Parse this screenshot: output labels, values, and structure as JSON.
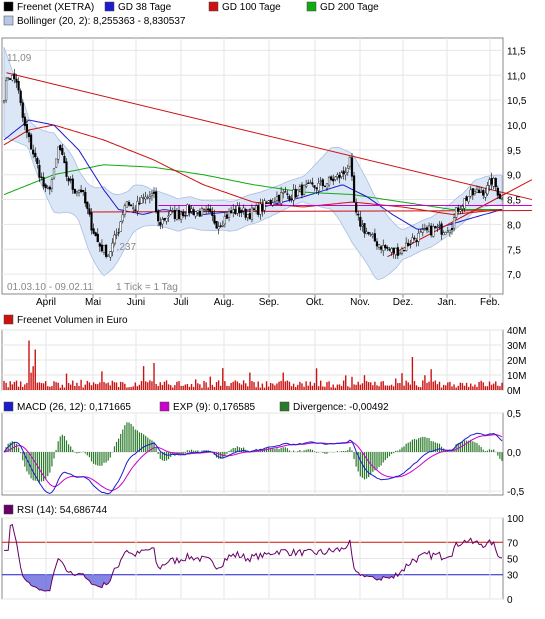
{
  "chart_data": [
    {
      "type": "candlestick",
      "legend": [
        {
          "label": "Freenet (XETRA)",
          "color": "#000000"
        },
        {
          "label": "GD 38 Tage",
          "color": "#1c1ccc"
        },
        {
          "label": "GD 100 Tage",
          "color": "#cc1111"
        },
        {
          "label": "GD 200 Tage",
          "color": "#11aa11"
        },
        {
          "label": "Bollinger (20, 2): 8,255363 - 8,830537",
          "color": "#b8c8e8"
        }
      ],
      "months": [
        "April",
        "Mai",
        "Juni",
        "Juli",
        "Aug.",
        "Sep.",
        "Okt.",
        "Nov.",
        "Dez.",
        "Jan.",
        "Feb."
      ],
      "y_ticks": [
        "11,5",
        "11,0",
        "10,5",
        "10,0",
        "9,5",
        "9,0",
        "8,5",
        "8,0",
        "7,5",
        "7,0"
      ],
      "ylim": [
        6.6,
        11.75
      ],
      "high_label": "11,09",
      "low_label": "7,237",
      "date_range": "01.03.10 - 09.02.11",
      "tick_note": "1 Tick = 1 Tag",
      "close_anchors": [
        {
          "m": 0.0,
          "v": 10.6
        },
        {
          "m": 0.08,
          "v": 11.0
        },
        {
          "m": 0.25,
          "v": 10.9
        },
        {
          "m": 0.4,
          "v": 10.0
        },
        {
          "m": 0.6,
          "v": 9.4
        },
        {
          "m": 0.85,
          "v": 8.6
        },
        {
          "m": 1.0,
          "v": 9.0
        },
        {
          "m": 1.1,
          "v": 9.6
        },
        {
          "m": 1.25,
          "v": 9.0
        },
        {
          "m": 1.4,
          "v": 8.7
        },
        {
          "m": 1.55,
          "v": 8.7
        },
        {
          "m": 1.75,
          "v": 8.0
        },
        {
          "m": 1.9,
          "v": 7.6
        },
        {
          "m": 2.1,
          "v": 7.4
        },
        {
          "m": 2.3,
          "v": 7.9
        },
        {
          "m": 2.45,
          "v": 8.5
        },
        {
          "m": 2.6,
          "v": 8.3
        },
        {
          "m": 2.8,
          "v": 8.5
        },
        {
          "m": 3.0,
          "v": 8.6
        },
        {
          "m": 3.1,
          "v": 8.0
        },
        {
          "m": 3.3,
          "v": 8.2
        },
        {
          "m": 3.5,
          "v": 8.2
        },
        {
          "m": 3.7,
          "v": 8.3
        },
        {
          "m": 3.9,
          "v": 8.25
        },
        {
          "m": 4.1,
          "v": 8.2
        },
        {
          "m": 4.3,
          "v": 8.0
        },
        {
          "m": 4.5,
          "v": 8.2
        },
        {
          "m": 4.7,
          "v": 8.3
        },
        {
          "m": 4.9,
          "v": 8.2
        },
        {
          "m": 5.0,
          "v": 8.25
        },
        {
          "m": 5.2,
          "v": 8.35
        },
        {
          "m": 5.4,
          "v": 8.5
        },
        {
          "m": 5.6,
          "v": 8.6
        },
        {
          "m": 5.8,
          "v": 8.6
        },
        {
          "m": 6.0,
          "v": 8.7
        },
        {
          "m": 6.2,
          "v": 8.75
        },
        {
          "m": 6.4,
          "v": 8.8
        },
        {
          "m": 6.6,
          "v": 8.9
        },
        {
          "m": 6.8,
          "v": 9.0
        },
        {
          "m": 6.95,
          "v": 9.25
        },
        {
          "m": 7.05,
          "v": 8.2
        },
        {
          "m": 7.2,
          "v": 7.95
        },
        {
          "m": 7.4,
          "v": 7.7
        },
        {
          "m": 7.6,
          "v": 7.55
        },
        {
          "m": 7.8,
          "v": 7.45
        },
        {
          "m": 8.0,
          "v": 7.5
        },
        {
          "m": 8.2,
          "v": 7.7
        },
        {
          "m": 8.4,
          "v": 7.8
        },
        {
          "m": 8.6,
          "v": 7.9
        },
        {
          "m": 8.8,
          "v": 7.9
        },
        {
          "m": 9.0,
          "v": 8.0
        },
        {
          "m": 9.1,
          "v": 8.3
        },
        {
          "m": 9.3,
          "v": 8.55
        },
        {
          "m": 9.5,
          "v": 8.65
        },
        {
          "m": 9.7,
          "v": 8.7
        },
        {
          "m": 9.8,
          "v": 8.9
        },
        {
          "m": 9.9,
          "v": 8.7
        },
        {
          "m": 10.0,
          "v": 8.5
        }
      ],
      "ma38_anchors": [
        {
          "m": 0.0,
          "v": 9.7
        },
        {
          "m": 0.5,
          "v": 10.1
        },
        {
          "m": 1.0,
          "v": 10.0
        },
        {
          "m": 1.5,
          "v": 9.5
        },
        {
          "m": 2.0,
          "v": 8.7
        },
        {
          "m": 2.3,
          "v": 8.3
        },
        {
          "m": 2.8,
          "v": 8.2
        },
        {
          "m": 3.2,
          "v": 8.3
        },
        {
          "m": 4.0,
          "v": 8.2
        },
        {
          "m": 5.0,
          "v": 8.3
        },
        {
          "m": 6.0,
          "v": 8.55
        },
        {
          "m": 6.8,
          "v": 8.8
        },
        {
          "m": 7.3,
          "v": 8.55
        },
        {
          "m": 7.8,
          "v": 8.2
        },
        {
          "m": 8.3,
          "v": 7.9
        },
        {
          "m": 8.8,
          "v": 7.95
        },
        {
          "m": 9.3,
          "v": 8.1
        },
        {
          "m": 10.0,
          "v": 8.3
        }
      ],
      "ma100_anchors": [
        {
          "m": 0.0,
          "v": 9.6
        },
        {
          "m": 0.5,
          "v": 9.9
        },
        {
          "m": 1.0,
          "v": 10.0
        },
        {
          "m": 2.0,
          "v": 9.7
        },
        {
          "m": 3.0,
          "v": 9.3
        },
        {
          "m": 4.0,
          "v": 8.8
        },
        {
          "m": 5.0,
          "v": 8.45
        },
        {
          "m": 6.0,
          "v": 8.35
        },
        {
          "m": 7.0,
          "v": 8.45
        },
        {
          "m": 8.0,
          "v": 8.35
        },
        {
          "m": 9.0,
          "v": 8.2
        },
        {
          "m": 10.0,
          "v": 8.3
        }
      ],
      "ma200_anchors": [
        {
          "m": 0.0,
          "v": 8.6
        },
        {
          "m": 1.0,
          "v": 9.0
        },
        {
          "m": 2.0,
          "v": 9.2
        },
        {
          "m": 3.0,
          "v": 9.15
        },
        {
          "m": 4.0,
          "v": 9.0
        },
        {
          "m": 5.0,
          "v": 8.8
        },
        {
          "m": 6.0,
          "v": 8.65
        },
        {
          "m": 7.0,
          "v": 8.6
        },
        {
          "m": 8.0,
          "v": 8.45
        },
        {
          "m": 9.0,
          "v": 8.3
        },
        {
          "m": 10.0,
          "v": 8.3
        }
      ],
      "boll_width_anchors": [
        {
          "m": 0.0,
          "v": 0.9
        },
        {
          "m": 0.5,
          "v": 0.3
        },
        {
          "m": 1.0,
          "v": 0.8
        },
        {
          "m": 1.5,
          "v": 0.5
        },
        {
          "m": 2.0,
          "v": 0.9
        },
        {
          "m": 2.5,
          "v": 0.5
        },
        {
          "m": 3.0,
          "v": 0.35
        },
        {
          "m": 4.0,
          "v": 0.3
        },
        {
          "m": 5.0,
          "v": 0.3
        },
        {
          "m": 6.0,
          "v": 0.25
        },
        {
          "m": 7.0,
          "v": 0.9
        },
        {
          "m": 7.5,
          "v": 0.8
        },
        {
          "m": 8.0,
          "v": 0.3
        },
        {
          "m": 9.0,
          "v": 0.3
        },
        {
          "m": 10.0,
          "v": 0.3
        }
      ],
      "trendlines": [
        {
          "color": "#cc1111",
          "from": {
            "m": 0.05,
            "v": 11.05
          },
          "to": {
            "m": 10.6,
            "v": 8.5
          }
        },
        {
          "color": "#cc1111",
          "from": {
            "m": 7.7,
            "v": 7.35
          },
          "to": {
            "m": 10.6,
            "v": 8.9
          }
        },
        {
          "color": "#cc1111",
          "from": {
            "m": 1.7,
            "v": 8.25
          },
          "to": {
            "m": 10.6,
            "v": 8.28
          }
        },
        {
          "color": "#cc00cc",
          "from": {
            "m": 3.1,
            "v": 8.38
          },
          "to": {
            "m": 10.6,
            "v": 8.38
          }
        }
      ]
    },
    {
      "type": "bar",
      "title": "Freenet Volumen in Euro",
      "y_ticks": [
        "40M",
        "30M",
        "20M",
        "10M",
        "0M"
      ],
      "ylim": [
        0,
        40
      ],
      "unit": "M Euro"
    },
    {
      "type": "line",
      "legend": [
        {
          "label": "MACD (26, 12): 0,171665",
          "color": "#1c1ccc"
        },
        {
          "label": "EXP (9): 0,176585",
          "color": "#cc00cc"
        },
        {
          "label": "Divergence: -0,00492",
          "color": "#2a7a2a"
        }
      ],
      "y_ticks": [
        "0,5",
        "0,0",
        "-0,5"
      ],
      "ylim": [
        -0.55,
        0.5
      ]
    },
    {
      "type": "line",
      "legend": [
        {
          "label": "RSI (14): 54,686744",
          "color": "#660066"
        }
      ],
      "y_ticks": [
        "100",
        "70",
        "50",
        "30",
        "0"
      ],
      "ylim": [
        0,
        100
      ],
      "levels": [
        70,
        30
      ]
    }
  ]
}
